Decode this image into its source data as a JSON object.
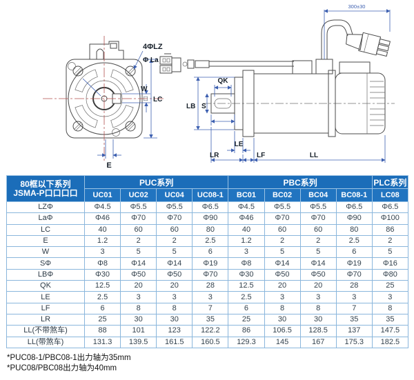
{
  "diagram": {
    "labels": {
      "holes": "4ΦLZ",
      "flange_dia": "Φ La",
      "w": "W",
      "square_symbol": "□",
      "lc": "LC",
      "e": "E",
      "cable_length": "300±30",
      "qk": "QK",
      "lb": "LB",
      "s": "S",
      "le": "LE",
      "lr": "LR",
      "lf": "LF",
      "ll": "LL"
    }
  },
  "table": {
    "corner_header": {
      "line1": "80框以下系列",
      "line2": "JSMA-P口口口口"
    },
    "groups": [
      {
        "label": "PUC系列",
        "span": 4
      },
      {
        "label": "PBC系列",
        "span": 4
      },
      {
        "label": "PLC系列",
        "span": 1
      }
    ],
    "columns": [
      "UC01",
      "UC02",
      "UC04",
      "UC08-1",
      "BC01",
      "BC02",
      "BC04",
      "BC08-1",
      "LC08"
    ],
    "rows": [
      {
        "param": "LZΦ",
        "values": [
          "Φ4.5",
          "Φ5.5",
          "Φ5.5",
          "Φ6.5",
          "Φ4.5",
          "Φ5.5",
          "Φ5.5",
          "Φ6.5",
          "Φ6.5"
        ]
      },
      {
        "param": "LaΦ",
        "values": [
          "Φ46",
          "Φ70",
          "Φ70",
          "Φ90",
          "Φ46",
          "Φ70",
          "Φ70",
          "Φ90",
          "Φ100"
        ]
      },
      {
        "param": "LC",
        "values": [
          "40",
          "60",
          "60",
          "80",
          "40",
          "60",
          "60",
          "80",
          "86"
        ]
      },
      {
        "param": "E",
        "values": [
          "1.2",
          "2",
          "2",
          "2.5",
          "1.2",
          "2",
          "2",
          "2.5",
          "2"
        ]
      },
      {
        "param": "W",
        "values": [
          "3",
          "5",
          "5",
          "6",
          "3",
          "5",
          "5",
          "6",
          "5"
        ]
      },
      {
        "param": "SΦ",
        "values": [
          "Φ8",
          "Φ14",
          "Φ14",
          "Φ19",
          "Φ8",
          "Φ14",
          "Φ14",
          "Φ19",
          "Φ16"
        ]
      },
      {
        "param": "LBΦ",
        "values": [
          "Φ30",
          "Φ50",
          "Φ50",
          "Φ70",
          "Φ30",
          "Φ50",
          "Φ50",
          "Φ70",
          "Φ80"
        ]
      },
      {
        "param": "QK",
        "values": [
          "12.5",
          "20",
          "20",
          "28",
          "12.5",
          "20",
          "20",
          "28",
          "25"
        ]
      },
      {
        "param": "LE",
        "values": [
          "2.5",
          "3",
          "3",
          "3",
          "2.5",
          "3",
          "3",
          "3",
          "3"
        ]
      },
      {
        "param": "LF",
        "values": [
          "6",
          "8",
          "8",
          "7",
          "6",
          "8",
          "8",
          "7",
          "8"
        ]
      },
      {
        "param": "LR",
        "values": [
          "25",
          "30",
          "30",
          "35",
          "25",
          "30",
          "30",
          "35",
          "35"
        ]
      },
      {
        "param": "LL(不带煞车)",
        "values": [
          "88",
          "101",
          "123",
          "122.2",
          "86",
          "106.5",
          "128.5",
          "137",
          "147.5"
        ]
      },
      {
        "param": "LL(带煞车)",
        "values": [
          "131.3",
          "139.5",
          "161.5",
          "160.5",
          "129.3",
          "145",
          "167",
          "175.3",
          "182.5"
        ]
      }
    ]
  },
  "notes": [
    "*PUC08-1/PBC08-1出力轴为35mm",
    "*PUC08/PBC08出力轴为40mm"
  ],
  "colors": {
    "header_blue": "#1b6db9",
    "header_blue_light": "#2174c0",
    "grid_blue": "#8ab6dc",
    "dimension_blue": "#3c5fb0",
    "centerline_red": "#b2504e",
    "drawing_gray": "#4a4a4a"
  }
}
